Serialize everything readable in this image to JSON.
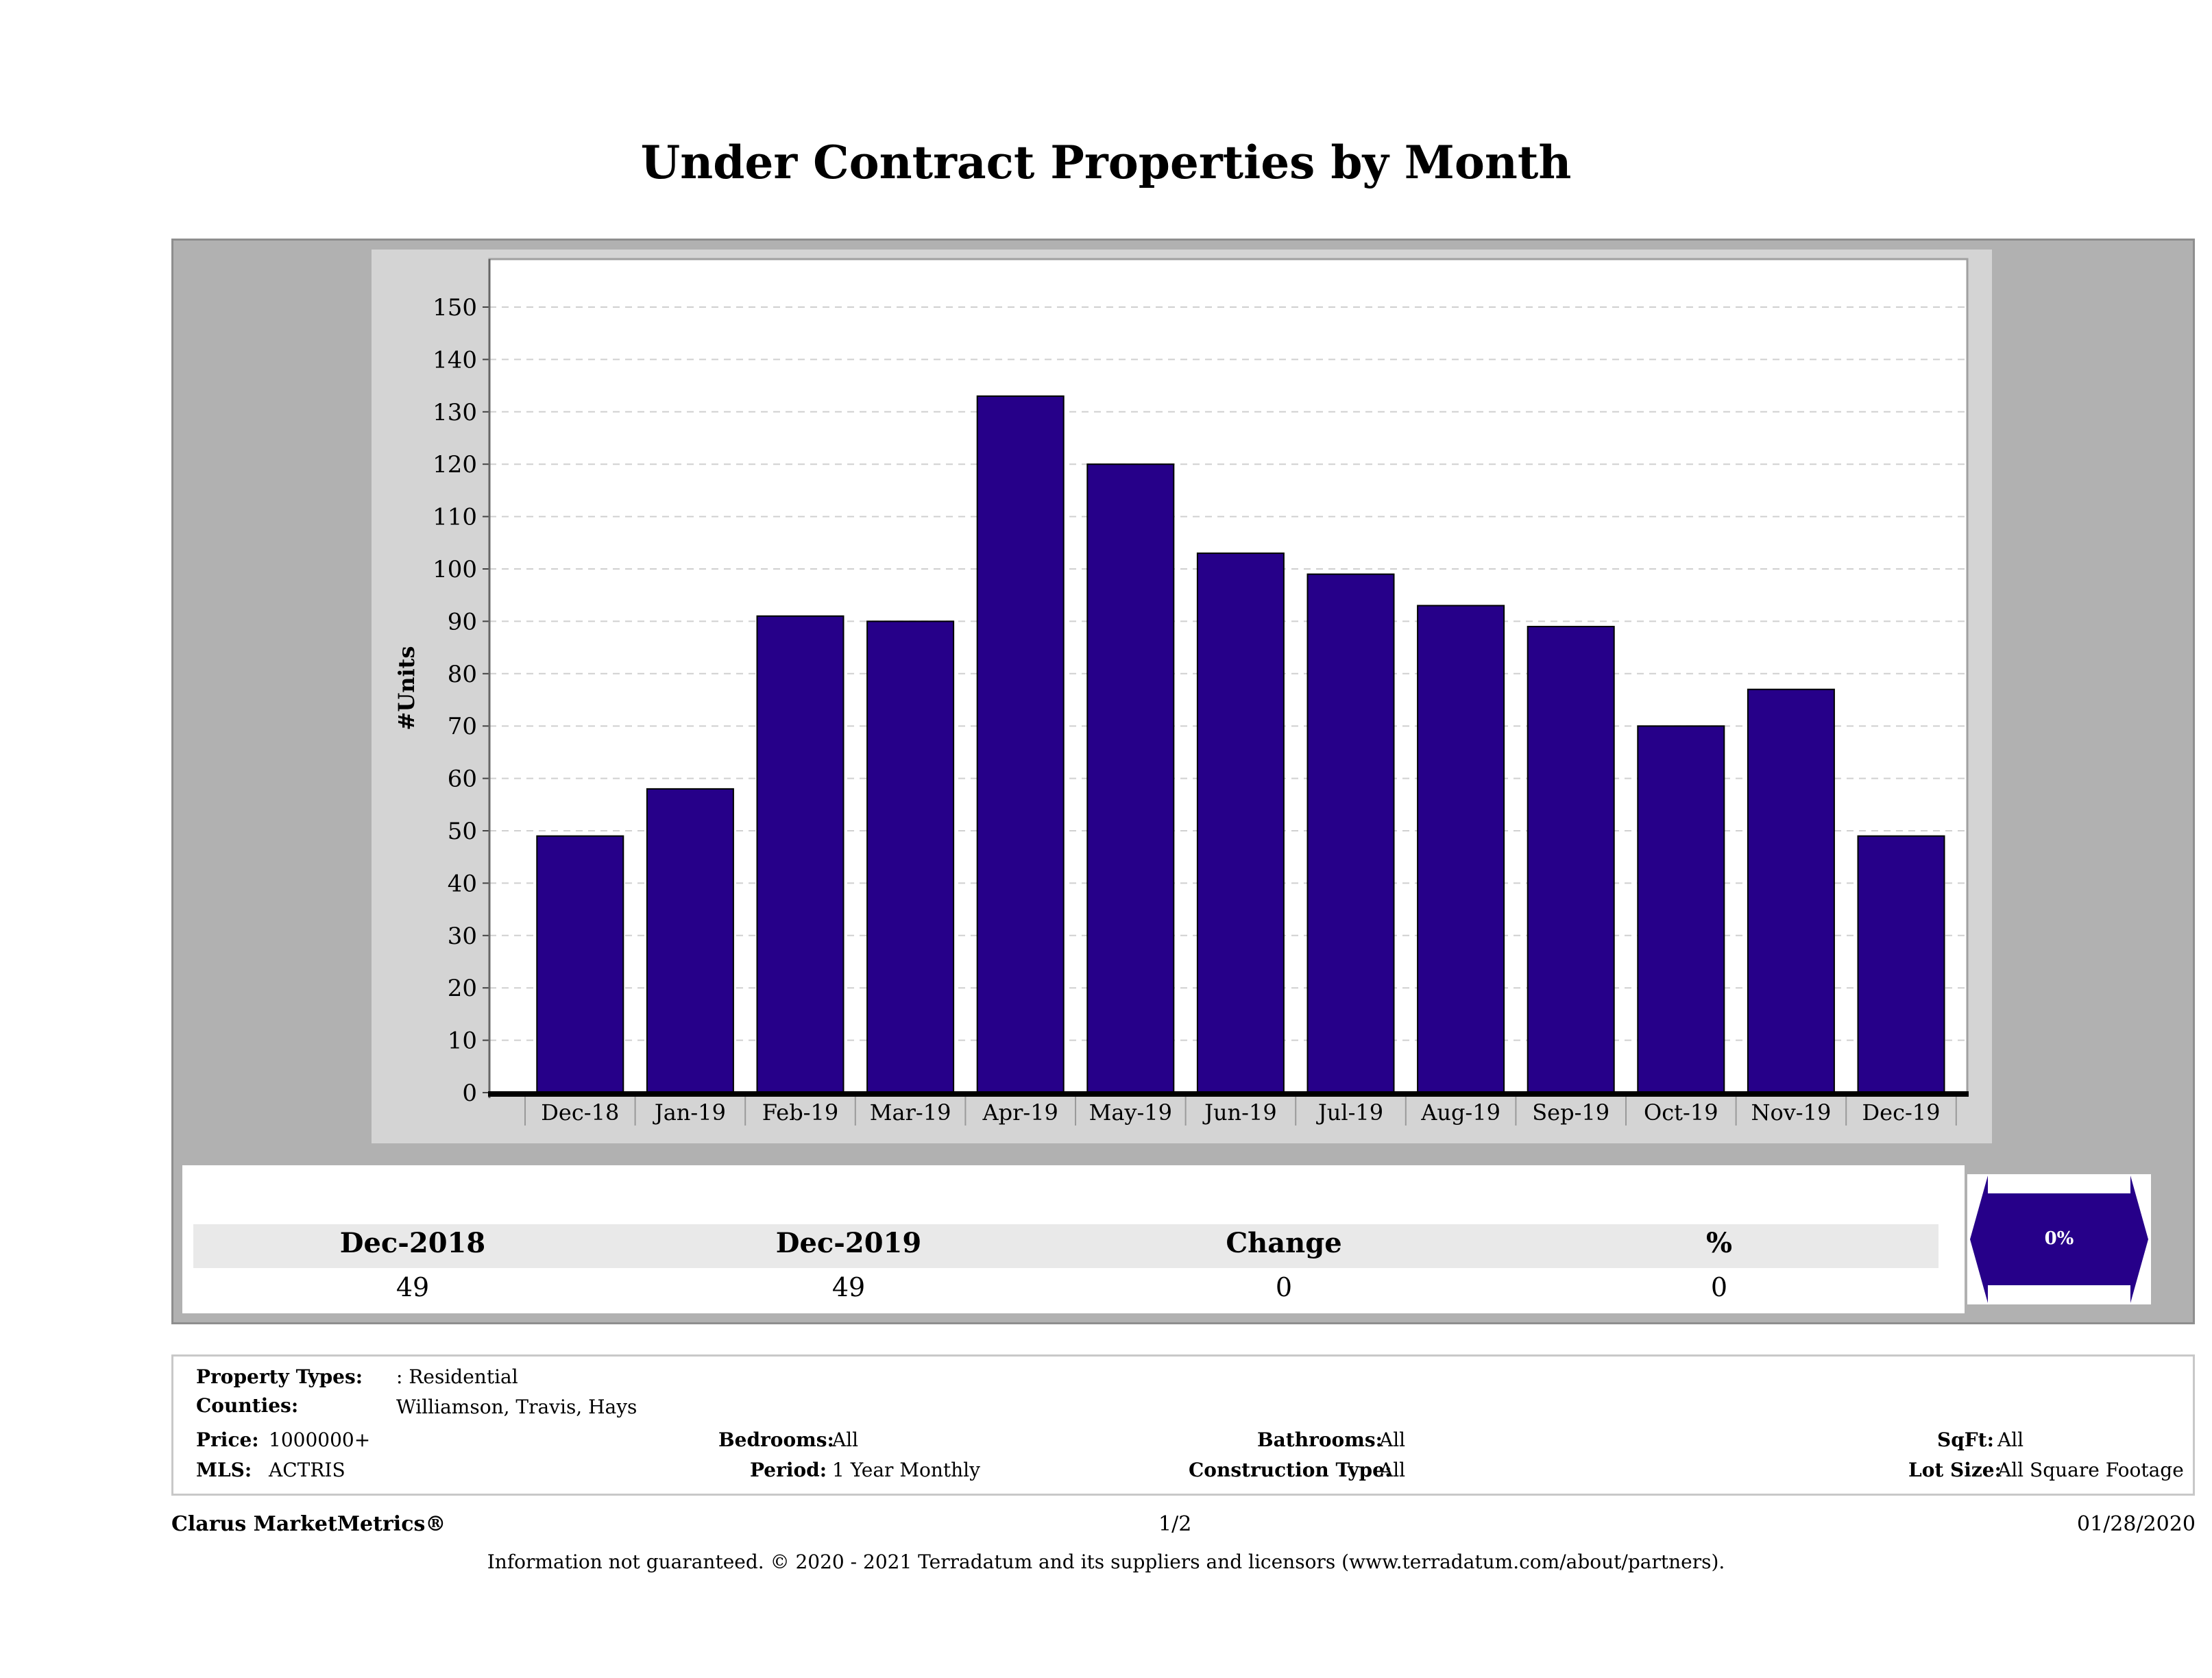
{
  "title": "Under Contract Properties by Month",
  "chart_data": {
    "type": "bar",
    "title": "Under Contract Properties by Month",
    "ylabel": "#Units",
    "xlabel": "",
    "categories": [
      "Dec-18",
      "Jan-19",
      "Feb-19",
      "Mar-19",
      "Apr-19",
      "May-19",
      "Jun-19",
      "Jul-19",
      "Aug-19",
      "Sep-19",
      "Oct-19",
      "Nov-19",
      "Dec-19"
    ],
    "values": [
      49,
      58,
      91,
      90,
      133,
      120,
      103,
      99,
      93,
      89,
      70,
      77,
      49
    ],
    "yticks": [
      0,
      10,
      20,
      30,
      40,
      50,
      60,
      70,
      80,
      90,
      100,
      110,
      120,
      130,
      140,
      150
    ],
    "ylim": [
      0,
      150
    ],
    "grid": true,
    "bar_color": "#260089"
  },
  "stats": {
    "headers": [
      "Dec-2018",
      "Dec-2019",
      "Change",
      "%"
    ],
    "values": [
      "49",
      "49",
      "0",
      "0"
    ],
    "change_badge": "0%"
  },
  "info": {
    "property_types_label": "Property Types:",
    "property_types_value": ": Residential",
    "counties_label": "Counties:",
    "counties_value": "Williamson, Travis, Hays",
    "price_label": "Price:",
    "price_value": "1000000+",
    "mls_label": "MLS:",
    "mls_value": "ACTRIS",
    "bedrooms_label": "Bedrooms:",
    "bedrooms_value": "All",
    "period_label": "Period:",
    "period_value": "1 Year Monthly",
    "bathrooms_label": "Bathrooms:",
    "bathrooms_value": "All",
    "construction_label": "Construction Type:",
    "construction_value": "All",
    "sqft_label": "SqFt:",
    "sqft_value": "All",
    "lotsize_label": "Lot Size:",
    "lotsize_value": "All Square Footage"
  },
  "footer": {
    "brand": "Clarus MarketMetrics®",
    "page": "1/2",
    "date": "01/28/2020",
    "disclaimer": "Information not guaranteed. © 2020 - 2021 Terradatum and its suppliers and licensors (www.terradatum.com/about/partners)."
  }
}
